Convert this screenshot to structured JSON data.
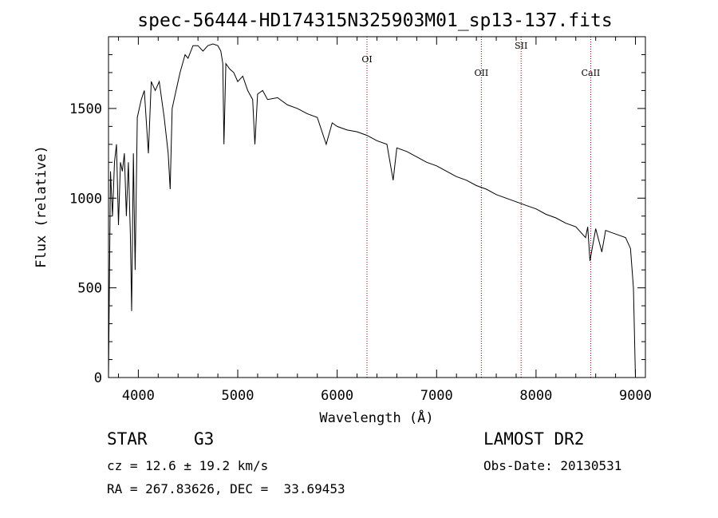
{
  "chart_data": {
    "type": "line",
    "title": "spec-56444-HD174315N325903M01_sp13-137.fits",
    "xlabel": "Wavelength (Å)",
    "ylabel": "Flux (relative)",
    "xlim": [
      3700,
      9100
    ],
    "ylim": [
      0,
      1900
    ],
    "xticks": [
      4000,
      5000,
      6000,
      7000,
      8000,
      9000
    ],
    "yticks": [
      0,
      500,
      1000,
      1500
    ],
    "line_color": "#000000",
    "marker_color": "#8b0000",
    "x": [
      3700,
      3720,
      3740,
      3760,
      3780,
      3800,
      3820,
      3840,
      3860,
      3880,
      3900,
      3920,
      3933,
      3950,
      3968,
      3990,
      4010,
      4030,
      4060,
      4101,
      4130,
      4170,
      4210,
      4260,
      4300,
      4320,
      4340,
      4380,
      4420,
      4470,
      4500,
      4550,
      4600,
      4650,
      4700,
      4750,
      4800,
      4830,
      4850,
      4861,
      4880,
      4920,
      4960,
      5000,
      5050,
      5100,
      5150,
      5172,
      5200,
      5250,
      5300,
      5400,
      5500,
      5600,
      5700,
      5800,
      5890,
      5950,
      6000,
      6100,
      6200,
      6300,
      6400,
      6500,
      6563,
      6600,
      6700,
      6800,
      6900,
      7000,
      7100,
      7200,
      7300,
      7400,
      7500,
      7600,
      7700,
      7800,
      7900,
      8000,
      8100,
      8200,
      8300,
      8400,
      8498,
      8520,
      8542,
      8600,
      8662,
      8700,
      8800,
      8900,
      8950,
      8980,
      9000
    ],
    "y": [
      0,
      1150,
      900,
      1200,
      1300,
      850,
      1200,
      1150,
      1250,
      900,
      1200,
      800,
      370,
      1250,
      600,
      1450,
      1500,
      1550,
      1600,
      1250,
      1650,
      1600,
      1650,
      1450,
      1250,
      1050,
      1500,
      1600,
      1700,
      1800,
      1780,
      1850,
      1850,
      1820,
      1850,
      1860,
      1850,
      1820,
      1750,
      1300,
      1750,
      1720,
      1700,
      1650,
      1680,
      1600,
      1550,
      1300,
      1580,
      1600,
      1550,
      1560,
      1520,
      1500,
      1470,
      1450,
      1300,
      1420,
      1400,
      1380,
      1370,
      1350,
      1320,
      1300,
      1100,
      1280,
      1260,
      1230,
      1200,
      1180,
      1150,
      1120,
      1100,
      1070,
      1050,
      1020,
      1000,
      980,
      960,
      940,
      910,
      890,
      860,
      840,
      780,
      840,
      650,
      830,
      700,
      820,
      800,
      780,
      720,
      500,
      0
    ],
    "spectral_lines": [
      {
        "label": "OI",
        "wavelength": 6300
      },
      {
        "label": "OII",
        "wavelength": 7450
      },
      {
        "label": "SII",
        "wavelength": 7850
      },
      {
        "label": "CaII",
        "wavelength": 8550
      }
    ]
  },
  "info": {
    "object_type": "STAR",
    "subclass": "G3",
    "survey": "LAMOST DR2",
    "cz": "cz = 12.6 ± 19.2 km/s",
    "obs_date": "Obs-Date: 20130531",
    "radec": "RA = 267.83626, DEC =  33.69453"
  }
}
